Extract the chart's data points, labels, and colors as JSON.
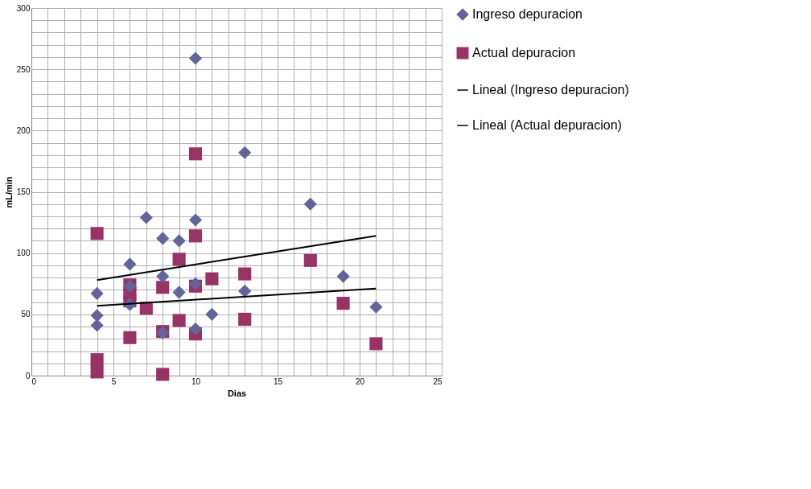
{
  "chart_data": {
    "type": "scatter",
    "xlabel": "Dias",
    "ylabel": "mL/min",
    "xlim": [
      0,
      25
    ],
    "ylim": [
      0,
      300
    ],
    "xticks": [
      0,
      {
        "value": 1,
        "label": null
      },
      {
        "value": 2,
        "label": null
      },
      {
        "value": 3,
        "label": null
      },
      {
        "value": 4,
        "label": null
      },
      5,
      {
        "value": 6,
        "label": null
      },
      {
        "value": 7,
        "label": null
      },
      {
        "value": 8,
        "label": null
      },
      {
        "value": 9,
        "label": null
      },
      10,
      {
        "value": 11,
        "label": null
      },
      {
        "value": 12,
        "label": null
      },
      {
        "value": 13,
        "label": null
      },
      {
        "value": 14,
        "label": null
      },
      15,
      {
        "value": 16,
        "label": null
      },
      {
        "value": 17,
        "label": null
      },
      {
        "value": 18,
        "label": null
      },
      {
        "value": 19,
        "label": null
      },
      20,
      {
        "value": 21,
        "label": null
      },
      {
        "value": 22,
        "label": null
      },
      {
        "value": 23,
        "label": null
      },
      {
        "value": 24,
        "label": null
      },
      25
    ],
    "yticks": [
      0,
      {
        "value": 10,
        "label": null
      },
      {
        "value": 20,
        "label": null
      },
      {
        "value": 30,
        "label": null
      },
      {
        "value": 40,
        "label": null
      },
      50,
      {
        "value": 60,
        "label": null
      },
      {
        "value": 70,
        "label": null
      },
      {
        "value": 80,
        "label": null
      },
      {
        "value": 90,
        "label": null
      },
      100,
      {
        "value": 110,
        "label": null
      },
      {
        "value": 120,
        "label": null
      },
      {
        "value": 130,
        "label": null
      },
      {
        "value": 140,
        "label": null
      },
      150,
      {
        "value": 160,
        "label": null
      },
      {
        "value": 170,
        "label": null
      },
      {
        "value": 180,
        "label": null
      },
      {
        "value": 190,
        "label": null
      },
      200,
      {
        "value": 210,
        "label": null
      },
      {
        "value": 220,
        "label": null
      },
      {
        "value": 230,
        "label": null
      },
      {
        "value": 240,
        "label": null
      },
      250,
      {
        "value": 260,
        "label": null
      },
      {
        "value": 270,
        "label": null
      },
      {
        "value": 280,
        "label": null
      },
      {
        "value": 290,
        "label": null
      },
      300
    ],
    "grid": true,
    "legend": "right",
    "series": [
      {
        "name": "Ingreso depuracion",
        "marker": "diamond",
        "color": "#64649c",
        "x": [
          4,
          4,
          4,
          6,
          6,
          6,
          7,
          8,
          8,
          8,
          9,
          9,
          10,
          10,
          10,
          10,
          11,
          13,
          13,
          17,
          19,
          21
        ],
        "values": [
          67,
          49,
          41,
          91,
          73,
          58,
          129,
          112,
          81,
          35,
          110,
          68,
          259,
          127,
          75,
          38,
          50,
          182,
          69,
          140,
          81,
          56
        ]
      },
      {
        "name": "Actual depuracion",
        "marker": "square",
        "color": "#993366",
        "x": [
          4,
          4,
          4,
          6,
          6,
          6,
          6,
          7,
          8,
          8,
          8,
          9,
          9,
          10,
          10,
          10,
          10,
          11,
          13,
          13,
          17,
          19,
          21
        ],
        "values": [
          116,
          13,
          3,
          74,
          67,
          61,
          31,
          55,
          72,
          36,
          1,
          95,
          45,
          181,
          114,
          73,
          34,
          79,
          83,
          46,
          94,
          59,
          26
        ]
      },
      {
        "name": "Lineal (Ingreso depuracion)",
        "type": "line",
        "line_style": "solid",
        "color": "#000000",
        "x": [
          4,
          21
        ],
        "values": [
          78,
          114
        ]
      },
      {
        "name": "Lineal (Actual depuracion)",
        "type": "line",
        "line_style": "solid",
        "color": "#000000",
        "x": [
          4,
          21
        ],
        "values": [
          57,
          71
        ]
      }
    ]
  }
}
